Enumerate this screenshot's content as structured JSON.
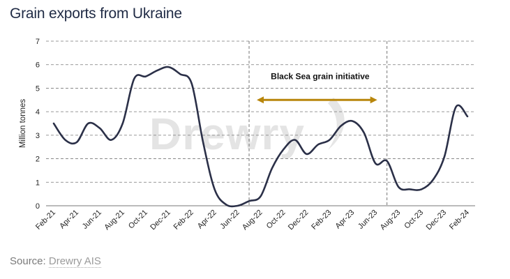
{
  "title": "Grain exports from Ukraine",
  "source": {
    "prefix": "Source: ",
    "link": "Drewry AIS"
  },
  "watermark": "Drewry",
  "colors": {
    "line": "#2b3048",
    "arrow": "#b8860b",
    "grid": "#777777",
    "title": "#1f2a44"
  },
  "chart_data": {
    "type": "line",
    "title": "Grain exports from Ukraine",
    "ylabel": "Million tonnes",
    "xlabel": "",
    "ylim": [
      0,
      7
    ],
    "yticks": [
      0,
      1,
      2,
      3,
      4,
      5,
      6,
      7
    ],
    "grid": "horizontal dashed",
    "x_tick_labels": [
      "Feb-21",
      "Apr-21",
      "Jun-21",
      "Aug-21",
      "Oct-21",
      "Dec-21",
      "Feb-22",
      "Apr-22",
      "Jun-22",
      "Aug-22",
      "Oct-22",
      "Dec-22",
      "Feb-23",
      "Apr-23",
      "Jun-23",
      "Aug-23",
      "Oct-23",
      "Dec-23",
      "Feb-24"
    ],
    "x": [
      "Feb-21",
      "Mar-21",
      "Apr-21",
      "May-21",
      "Jun-21",
      "Jul-21",
      "Aug-21",
      "Sep-21",
      "Oct-21",
      "Nov-21",
      "Dec-21",
      "Jan-22",
      "Feb-22",
      "Mar-22",
      "Apr-22",
      "May-22",
      "Jun-22",
      "Jul-22",
      "Aug-22",
      "Sep-22",
      "Oct-22",
      "Nov-22",
      "Dec-22",
      "Jan-23",
      "Feb-23",
      "Mar-23",
      "Apr-23",
      "May-23",
      "Jun-23",
      "Jul-23",
      "Aug-23",
      "Sep-23",
      "Oct-23",
      "Nov-23",
      "Dec-23",
      "Jan-24",
      "Feb-24"
    ],
    "series": [
      {
        "values": [
          3.5,
          2.8,
          2.7,
          3.5,
          3.3,
          2.8,
          3.5,
          5.4,
          5.5,
          5.75,
          5.9,
          5.6,
          5.2,
          2.7,
          0.7,
          0.05,
          0.0,
          0.2,
          0.4,
          1.6,
          2.4,
          2.8,
          2.2,
          2.6,
          2.8,
          3.4,
          3.6,
          3.1,
          1.8,
          1.9,
          0.8,
          0.7,
          0.7,
          1.1,
          2.1,
          4.2,
          3.8
        ]
      }
    ],
    "reference_lines": [
      {
        "x": "Jul-22"
      },
      {
        "x": "Jul-23"
      }
    ],
    "annotations": [
      {
        "text": "Black Sea grain initiative",
        "span": [
          "Jul-22",
          "Jul-23"
        ]
      }
    ]
  }
}
